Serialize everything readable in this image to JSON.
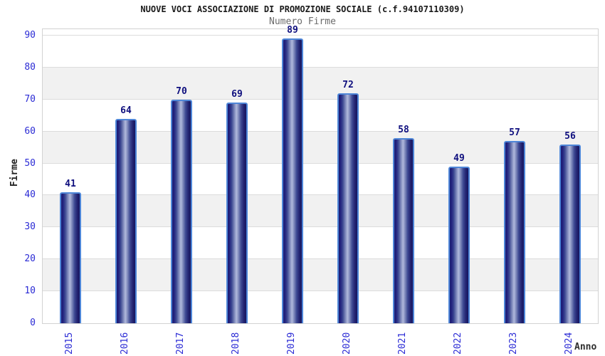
{
  "chart_data": {
    "type": "bar",
    "title": "NUOVE VOCI ASSOCIAZIONE DI PROMOZIONE SOCIALE (c.f.94107110309)",
    "subtitle": "Numero Firme",
    "xlabel": "Anno",
    "ylabel": "Firme",
    "categories": [
      "2015",
      "2016",
      "2017",
      "2018",
      "2019",
      "2020",
      "2021",
      "2022",
      "2023",
      "2024"
    ],
    "values": [
      41,
      64,
      70,
      69,
      89,
      72,
      58,
      49,
      57,
      56
    ],
    "yticks": [
      0,
      10,
      20,
      30,
      40,
      50,
      60,
      70,
      80,
      90
    ],
    "ylim": [
      0,
      92
    ],
    "grid": true,
    "value_labels_shown": true,
    "legend_position": "none",
    "band_pattern": "alternating gray bands each 10 units (10-20, 30-40, 50-60, 70-80)"
  },
  "colors": {
    "title": "#1a1a1a",
    "subtitle": "#6b6b6b",
    "tick_label": "#2b2bd5",
    "value_label": "#0f0f7e",
    "bar_border": "#4e86d8",
    "bar_edge_dark": "#1b1b72",
    "bar_highlight": "#b0b9dc",
    "band_gray": "#f1f1f1",
    "gridline": "#dcdcdc",
    "plot_border": "#d2d2d2",
    "background": "#ffffff"
  }
}
